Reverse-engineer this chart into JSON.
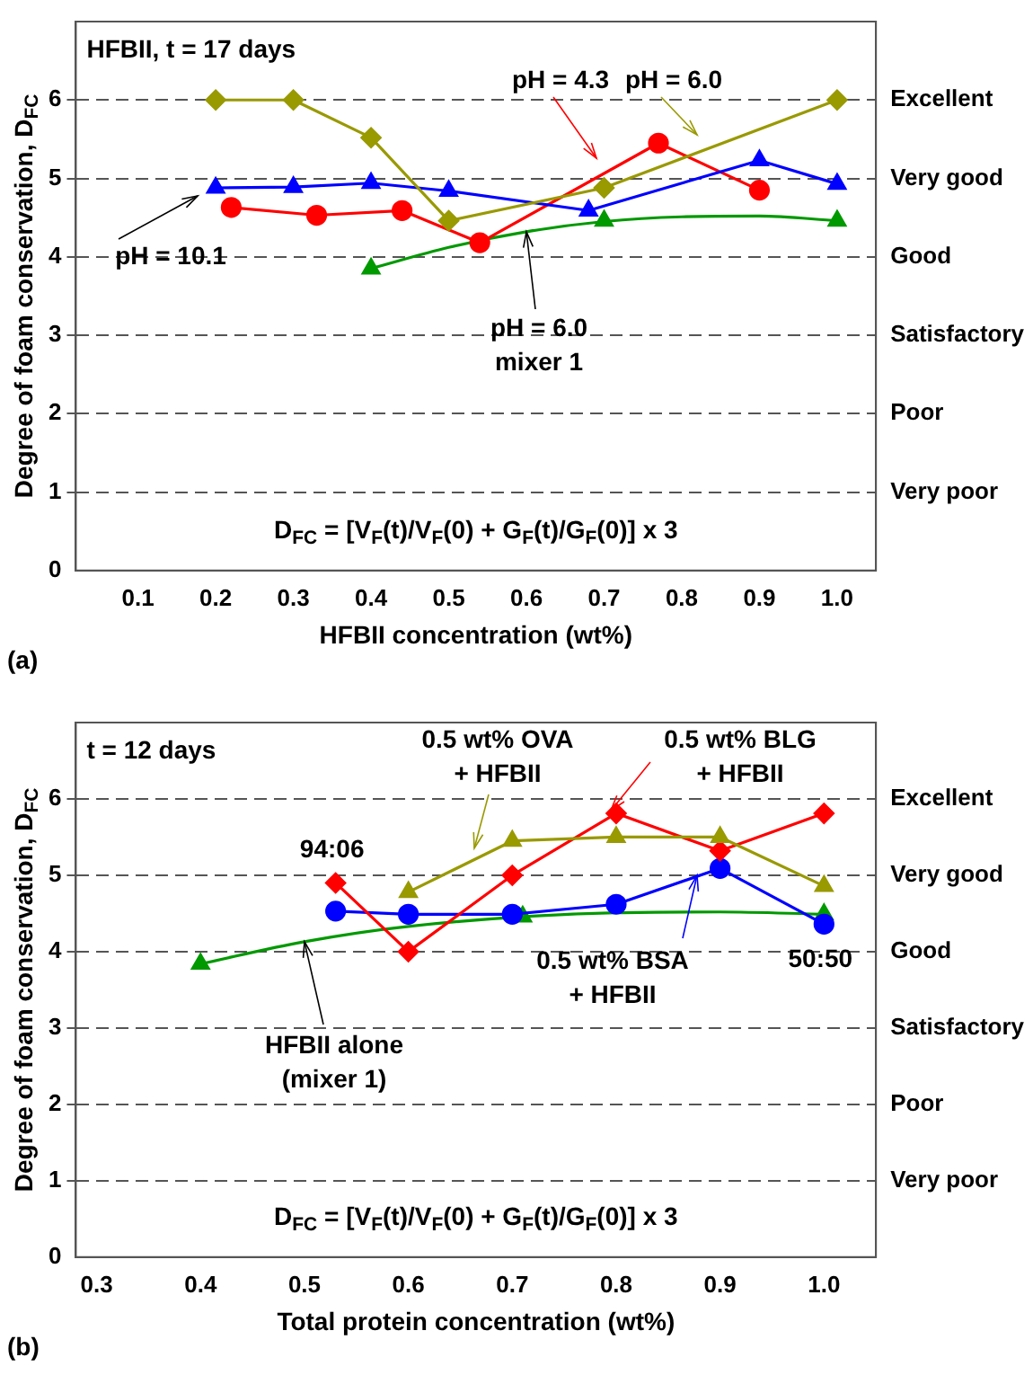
{
  "chart_data": [
    {
      "type": "line",
      "xlabel": "HFBII concentration (wt%)",
      "ylabel": "Degree of foam conservation, D$_{FC}$",
      "xlim": [
        0.02,
        1.05
      ],
      "xticks": [
        {
          "value": 0.1,
          "label": "0.1"
        },
        {
          "value": 0.2,
          "label": "0.2"
        },
        {
          "value": 0.3,
          "label": "0.3"
        },
        {
          "value": 0.4,
          "label": "0.4"
        },
        {
          "value": 0.5,
          "label": "0.5"
        },
        {
          "value": 0.6,
          "label": "0.6"
        },
        {
          "value": 0.7,
          "label": "0.7"
        },
        {
          "value": 0.8,
          "label": "0.8"
        },
        {
          "value": 0.9,
          "label": "0.9"
        },
        {
          "value": 1.0,
          "label": "1.0"
        }
      ],
      "ylim": [
        0,
        7
      ],
      "yticks": [
        0,
        1,
        2,
        3,
        4,
        5,
        6
      ],
      "y2_categories": [
        null,
        "Excellent",
        "Very good",
        "Good",
        "Satisfactory",
        "Poor",
        "Very poor",
        null
      ],
      "grid": "y",
      "legend": false,
      "annotations": [
        "HFBII, t = 17 days",
        "D$_{FC}$ = [V$_{F}$(t)/V$_{F}$(0) + G$_{F}$(t)/G$_{F}$(0)] x 3",
        "(a)",
        {
          "text": "pH = 6.0\nmixer 1",
          "x": 0.6,
          "y": 4.32
        }
      ],
      "series": [
        {
          "name": "pH = 6.0",
          "color": "#999900",
          "marker": "diamond",
          "x": [
            0.2,
            0.3,
            0.4,
            0.5,
            0.7,
            1.0
          ],
          "values": [
            6.0,
            6.0,
            5.52,
            4.46,
            4.88,
            6.0
          ]
        },
        {
          "name": "pH = 10.1",
          "color": "#0000ff",
          "marker": "triangle",
          "x": [
            0.2,
            0.3,
            0.4,
            0.5,
            0.68,
            0.9,
            1.0
          ],
          "values": [
            4.88,
            4.89,
            4.94,
            4.84,
            4.59,
            5.23,
            4.93
          ]
        },
        {
          "name": "pH = 4.3",
          "color": "#ff0000",
          "marker": "circle",
          "x": [
            0.22,
            0.33,
            0.44,
            0.54,
            0.77,
            0.9
          ],
          "values": [
            4.63,
            4.53,
            4.59,
            4.18,
            5.45,
            4.85
          ]
        },
        {
          "type": "scatter",
          "color": "#009900",
          "marker": "triangle",
          "x": [
            0.4,
            0.7,
            1.0
          ],
          "values": [
            3.85,
            4.46,
            4.46
          ]
        },
        {
          "type": "line",
          "color": "#009900",
          "marker": "none",
          "x": [
            0.4,
            0.5,
            0.6,
            0.7,
            0.8,
            0.9,
            1.0
          ],
          "values": [
            3.85,
            4.12,
            4.32,
            4.45,
            4.51,
            4.52,
            4.46
          ]
        }
      ]
    },
    {
      "type": "line",
      "xlabel": "Total protein concentration (wt%)",
      "ylabel": "Degree of foam conservation, D$_{FC}$",
      "xlim": [
        0.28,
        1.05
      ],
      "xticks": [
        {
          "value": 0.3,
          "label": "0.3"
        },
        {
          "value": 0.4,
          "label": "0.4"
        },
        {
          "value": 0.5,
          "label": "0.5"
        },
        {
          "value": 0.6,
          "label": "0.6"
        },
        {
          "value": 0.7,
          "label": "0.7"
        },
        {
          "value": 0.8,
          "label": "0.8"
        },
        {
          "value": 0.9,
          "label": "0.9"
        },
        {
          "value": 1.0,
          "label": "1.0"
        }
      ],
      "ylim": [
        0,
        7
      ],
      "yticks": [
        0,
        1,
        2,
        3,
        4,
        5,
        6
      ],
      "y2_categories": [
        null,
        "Excellent",
        "Very good",
        "Good",
        "Satisfactory",
        "Poor",
        "Very poor",
        null
      ],
      "grid": "y",
      "legend": false,
      "annotations": [
        "t = 12 days",
        "D$_{FC}$ = [V$_{F}$(t)/V$_{F}$(0) + G$_{F}$(t)/G$_{F}$(0)] x 3",
        "(b)",
        {
          "text": "94:06",
          "x": 0.53,
          "y": 4.9
        },
        {
          "text": "50:50",
          "x": 1.0,
          "y": 4.36
        },
        {
          "text": "HFBII alone\n(mixer 1)",
          "x": 0.5,
          "y": 4.13
        }
      ],
      "series": [
        {
          "name": "0.5 wt% OVA\n+ HFBII",
          "color": "#999900",
          "marker": "triangle",
          "x": [
            0.6,
            0.7,
            0.8,
            0.9,
            1.0
          ],
          "values": [
            4.78,
            5.45,
            5.5,
            5.5,
            4.86
          ]
        },
        {
          "name": "0.5 wt% BLG\n+ HFBII",
          "color": "#ff0000",
          "marker": "diamond",
          "x": [
            0.53,
            0.6,
            0.7,
            0.8,
            0.9,
            1.0
          ],
          "values": [
            4.9,
            4.0,
            5.0,
            5.81,
            5.32,
            5.81
          ]
        },
        {
          "name": "0.5 wt% BSA\n+ HFBII",
          "color": "#0000ff",
          "marker": "circle",
          "x": [
            0.53,
            0.6,
            0.7,
            0.8,
            0.9,
            1.0
          ],
          "values": [
            4.53,
            4.49,
            4.49,
            4.62,
            5.09,
            4.36
          ]
        },
        {
          "type": "scatter",
          "color": "#009900",
          "marker": "triangle",
          "x": [
            0.4,
            0.71,
            1.0
          ],
          "values": [
            3.84,
            4.46,
            4.49
          ]
        },
        {
          "type": "line",
          "color": "#009900",
          "marker": "none",
          "x": [
            0.4,
            0.5,
            0.6,
            0.8,
            0.9,
            1.0
          ],
          "values": [
            3.84,
            4.13,
            4.33,
            4.51,
            4.52,
            4.49
          ]
        }
      ]
    }
  ]
}
